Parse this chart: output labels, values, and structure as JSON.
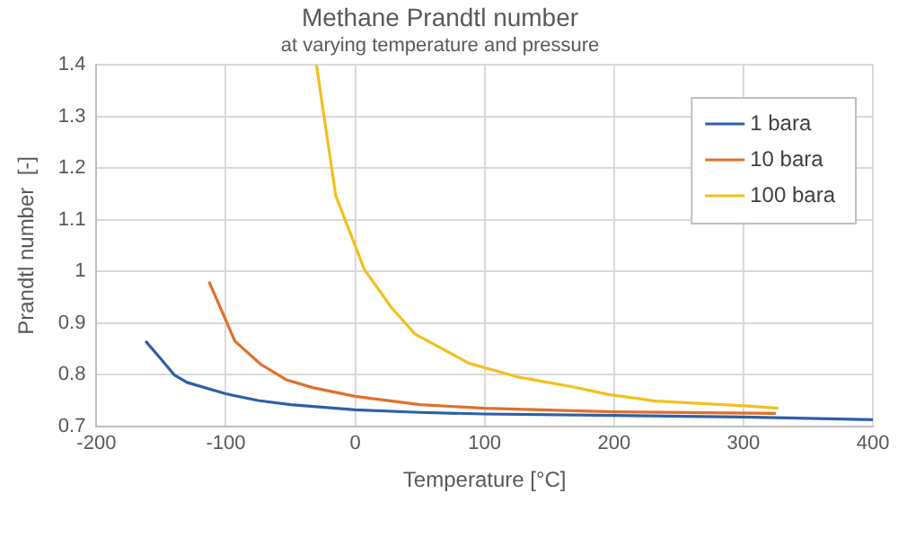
{
  "chart_data": {
    "type": "line",
    "title": "Methane Prandtl number",
    "subtitle": "at varying temperature and pressure",
    "xlabel": "Temperature [°C]",
    "ylabel": "Prandtl number  [-]",
    "xlim": [
      -200,
      400
    ],
    "xticks": [
      -200,
      -100,
      0,
      100,
      200,
      300,
      400
    ],
    "ylim": [
      0.7,
      1.4
    ],
    "yticks": [
      0.7,
      0.8,
      0.9,
      1,
      1.1,
      1.2,
      1.3,
      1.4
    ],
    "grid": true,
    "legend": "top right",
    "marker": "none",
    "series": [
      {
        "name": "1 bara",
        "color": "#2e5fa8",
        "x": [
          -162,
          -150,
          -140,
          -130,
          -100,
          -75,
          -50,
          0,
          50,
          100,
          200,
          300,
          400
        ],
        "values": [
          0.865,
          0.83,
          0.8,
          0.785,
          0.763,
          0.75,
          0.742,
          0.732,
          0.727,
          0.724,
          0.721,
          0.718,
          0.713
        ]
      },
      {
        "name": "10 bara",
        "color": "#e0702a",
        "x": [
          -113,
          -93,
          -73,
          -53,
          -33,
          0,
          50,
          100,
          200,
          325
        ],
        "values": [
          0.98,
          0.865,
          0.82,
          0.79,
          0.775,
          0.758,
          0.742,
          0.735,
          0.728,
          0.725
        ]
      },
      {
        "name": "100 bara",
        "color": "#f2c01e",
        "x": [
          -30,
          -15,
          7,
          28,
          46,
          88,
          125,
          167,
          195,
          232,
          301,
          327
        ],
        "values": [
          1.4,
          1.146,
          1.004,
          0.93,
          0.879,
          0.822,
          0.796,
          0.777,
          0.762,
          0.749,
          0.74,
          0.735
        ]
      }
    ]
  }
}
